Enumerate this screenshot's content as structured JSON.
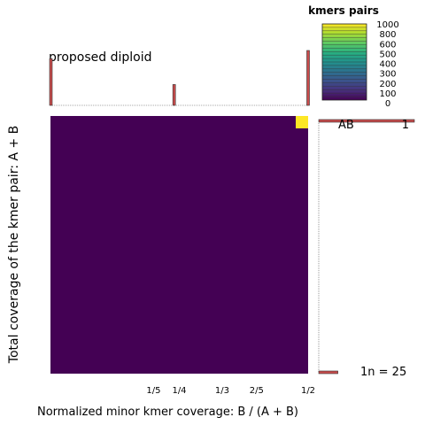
{
  "chart_data": {
    "type": "heatmap",
    "title": "proposed diploid",
    "xlabel": "Normalized minor kmer coverage: B / (A + B)",
    "ylabel": "Total coverage of the kmer pair: A + B",
    "x_range": [
      0,
      0.5
    ],
    "x_ticks": [
      {
        "value": 0.2,
        "label": "1/5"
      },
      {
        "value": 0.25,
        "label": "1/4"
      },
      {
        "value": 0.3333,
        "label": "1/3"
      },
      {
        "value": 0.4,
        "label": "2/5"
      },
      {
        "value": 0.5,
        "label": "1/2"
      }
    ],
    "grid": false,
    "legend": {
      "title": "kmers pairs",
      "placement": "top-right",
      "min": 0,
      "max": 1000,
      "ticks": [
        1000,
        800,
        600,
        500,
        400,
        300,
        200,
        100,
        0
      ],
      "colormap": "viridis"
    },
    "cells": [
      {
        "x": 0.5,
        "y": 1,
        "value": 1000
      }
    ],
    "background_value": 0,
    "top_histogram": {
      "bars": [
        {
          "x": 0.0,
          "value": 0.85
        },
        {
          "x": 0.24,
          "value": 0.38
        },
        {
          "x": 0.5,
          "value": 1.0
        }
      ]
    },
    "right_histogram": {
      "bars": [
        {
          "label": "AB",
          "value": 1.0
        },
        {
          "label": "1n",
          "value": 0.2
        }
      ]
    },
    "peaks": [
      {
        "label": "AB",
        "value": "1"
      }
    ],
    "coverage_label": "1n =  25"
  },
  "colors": {
    "background_cell": "#440154",
    "peak_cell": "#fde725",
    "hist_bar": "#c84c4c"
  }
}
